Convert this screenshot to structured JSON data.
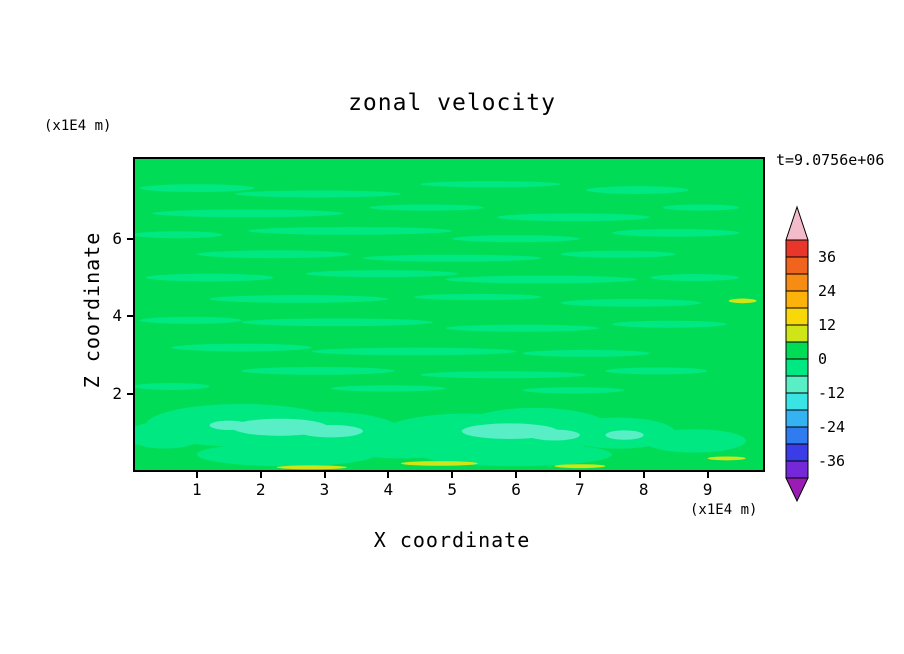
{
  "chart_data": {
    "type": "heatmap",
    "title": "zonal velocity",
    "time_annotation": "t=9.0756e+06",
    "xlabel": "X coordinate",
    "ylabel": "Z coordinate",
    "x_units": "(x1E4 m)",
    "y_units": "(x1E4 m)",
    "x_ticks": [
      1,
      2,
      3,
      4,
      5,
      6,
      7,
      8,
      9
    ],
    "y_ticks": [
      2,
      4,
      6
    ],
    "xlim": [
      0,
      9.9
    ],
    "ylim": [
      0,
      8.1
    ],
    "grid": false,
    "legend_position": "right",
    "colorbar": {
      "tick_labels": [
        "36",
        "24",
        "12",
        "0",
        "-12",
        "-24",
        "-36"
      ],
      "contour_interval": 6,
      "over_color": "#f4bcca",
      "under_color": "#9a1cb4",
      "segments": [
        {
          "min": 36,
          "max": 42,
          "color": "#e8372a"
        },
        {
          "min": 30,
          "max": 36,
          "color": "#f0641e"
        },
        {
          "min": 24,
          "max": 30,
          "color": "#f78c14"
        },
        {
          "min": 18,
          "max": 24,
          "color": "#fcb20a"
        },
        {
          "min": 12,
          "max": 18,
          "color": "#f8d808"
        },
        {
          "min": 6,
          "max": 12,
          "color": "#cfe518"
        },
        {
          "min": 0,
          "max": 6,
          "color": "#00dc55"
        },
        {
          "min": -6,
          "max": 0,
          "color": "#00e882"
        },
        {
          "min": -12,
          "max": -6,
          "color": "#58eec6"
        },
        {
          "min": -18,
          "max": -12,
          "color": "#3ae4e4"
        },
        {
          "min": -24,
          "max": -18,
          "color": "#35b2f2"
        },
        {
          "min": -30,
          "max": -24,
          "color": "#2f7cf0"
        },
        {
          "min": -36,
          "max": -30,
          "color": "#3a3ce8"
        },
        {
          "min": -42,
          "max": -36,
          "color": "#7428d8"
        }
      ]
    },
    "field": {
      "description": "cross-section mostly in the 0 to 6 band, with elongated horizontal streaks of the 0 to -6 band, patches of -6 to -12 near the bottom boundary, and thin 6 to 12 streaks along the lower edge",
      "background_color": "#00dc55",
      "band_colors": {
        "level_0_to_neg6": "#00e882",
        "level_neg6_to_neg12": "#58eec6",
        "level_6_to_12": "#cfe518"
      },
      "streak_groups": [
        {
          "band": "level_0_to_neg6",
          "blobs": [
            [
              1.0,
              7.3,
              0.9,
              0.1
            ],
            [
              2.9,
              7.15,
              1.3,
              0.09
            ],
            [
              5.6,
              7.4,
              1.1,
              0.08
            ],
            [
              7.9,
              7.25,
              0.8,
              0.1
            ],
            [
              1.8,
              6.65,
              1.5,
              0.1
            ],
            [
              4.6,
              6.8,
              0.9,
              0.08
            ],
            [
              6.9,
              6.55,
              1.2,
              0.1
            ],
            [
              8.9,
              6.8,
              0.6,
              0.08
            ],
            [
              0.7,
              6.1,
              0.7,
              0.09
            ],
            [
              3.4,
              6.2,
              1.6,
              0.1
            ],
            [
              6.0,
              6.0,
              1.0,
              0.09
            ],
            [
              8.5,
              6.15,
              1.0,
              0.1
            ],
            [
              2.2,
              5.6,
              1.2,
              0.1
            ],
            [
              5.0,
              5.5,
              1.4,
              0.09
            ],
            [
              7.6,
              5.6,
              0.9,
              0.09
            ],
            [
              1.2,
              5.0,
              1.0,
              0.1
            ],
            [
              3.9,
              5.1,
              1.2,
              0.09
            ],
            [
              6.4,
              4.95,
              1.5,
              0.1
            ],
            [
              8.8,
              5.0,
              0.7,
              0.09
            ],
            [
              2.6,
              4.45,
              1.4,
              0.1
            ],
            [
              5.4,
              4.5,
              1.0,
              0.08
            ],
            [
              7.8,
              4.35,
              1.1,
              0.1
            ],
            [
              0.9,
              3.9,
              0.8,
              0.09
            ],
            [
              3.2,
              3.85,
              1.5,
              0.1
            ],
            [
              6.1,
              3.7,
              1.2,
              0.09
            ],
            [
              8.4,
              3.8,
              0.9,
              0.09
            ],
            [
              1.7,
              3.2,
              1.1,
              0.1
            ],
            [
              4.4,
              3.1,
              1.6,
              0.1
            ],
            [
              7.1,
              3.05,
              1.0,
              0.09
            ],
            [
              2.9,
              2.6,
              1.2,
              0.1
            ],
            [
              5.8,
              2.5,
              1.3,
              0.09
            ],
            [
              8.2,
              2.6,
              0.8,
              0.09
            ],
            [
              0.6,
              2.2,
              0.6,
              0.09
            ],
            [
              4.0,
              2.15,
              0.9,
              0.08
            ],
            [
              6.9,
              2.1,
              0.8,
              0.08
            ],
            [
              1.7,
              1.2,
              1.5,
              0.55
            ],
            [
              3.0,
              1.05,
              1.2,
              0.5
            ],
            [
              5.2,
              1.0,
              1.3,
              0.5
            ],
            [
              6.3,
              1.1,
              1.2,
              0.55
            ],
            [
              4.2,
              0.7,
              1.0,
              0.35
            ],
            [
              7.6,
              1.0,
              0.9,
              0.4
            ],
            [
              8.8,
              0.8,
              0.8,
              0.3
            ],
            [
              0.5,
              0.95,
              0.6,
              0.35
            ],
            [
              2.4,
              0.45,
              1.4,
              0.3
            ],
            [
              6.0,
              0.45,
              1.5,
              0.3
            ]
          ]
        },
        {
          "band": "level_neg6_to_neg12",
          "blobs": [
            [
              2.3,
              1.15,
              0.75,
              0.22
            ],
            [
              3.1,
              1.05,
              0.5,
              0.16
            ],
            [
              5.9,
              1.05,
              0.75,
              0.2
            ],
            [
              6.6,
              0.95,
              0.4,
              0.14
            ],
            [
              7.7,
              0.95,
              0.3,
              0.12
            ],
            [
              1.5,
              1.2,
              0.3,
              0.12
            ]
          ]
        },
        {
          "band": "level_6_to_12",
          "blobs": [
            [
              2.8,
              0.12,
              0.55,
              0.05
            ],
            [
              4.8,
              0.22,
              0.6,
              0.06
            ],
            [
              7.0,
              0.15,
              0.4,
              0.05
            ],
            [
              9.3,
              0.35,
              0.3,
              0.05
            ],
            [
              9.55,
              4.4,
              0.22,
              0.06
            ]
          ]
        }
      ]
    }
  }
}
